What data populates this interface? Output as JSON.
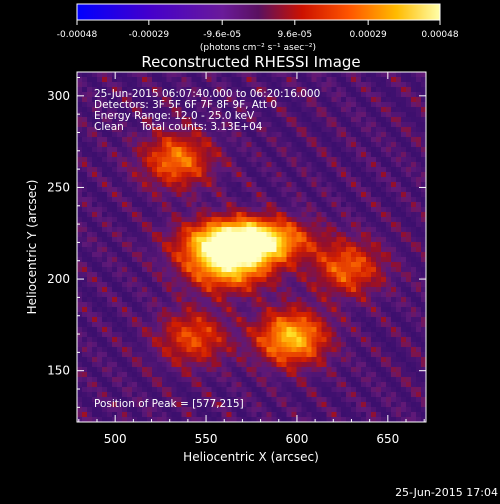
{
  "chart_data": {
    "type": "heatmap",
    "title": "Reconstructed RHESSI Image",
    "xlabel": "Heliocentric X (arcsec)",
    "ylabel": "Heliocentric Y (arcsec)",
    "xlim": [
      479,
      671
    ],
    "ylim": [
      122,
      313
    ],
    "x_ticks": [
      500,
      550,
      600,
      650
    ],
    "y_ticks": [
      150,
      200,
      250,
      300
    ],
    "grid": false,
    "colormap": "hot-metal (black-purple-red-orange-yellow-white)",
    "colorbar": {
      "position": "top",
      "range": [
        -0.00048,
        0.00048
      ],
      "tick_labels": [
        "-0.00048",
        "-0.00029",
        "-9.6e-05",
        "9.6e-05",
        "0.00029",
        "0.00048"
      ],
      "units_label": "(photons cm⁻² s⁻¹ asec⁻²)"
    },
    "annotations": [
      "25-Jun-2015 06:07:40.000 to 06:20:16.000",
      "Detectors: 3F 5F 6F 7F 8F 9F, Att 0",
      "Energy Range: 12.0 - 25.0 keV",
      "Clean     Total counts: 3.13E+04"
    ],
    "peak_label": "Position of Peak = [577,215]",
    "peak": {
      "x": 577,
      "y": 215
    },
    "sources": [
      {
        "x": 572,
        "y": 221,
        "intensity": 1.0
      },
      {
        "x": 562,
        "y": 209,
        "intensity": 0.7
      },
      {
        "x": 597,
        "y": 168,
        "intensity": 0.62
      },
      {
        "x": 534,
        "y": 265,
        "intensity": 0.45
      },
      {
        "x": 628,
        "y": 206,
        "intensity": 0.4
      },
      {
        "x": 543,
        "y": 168,
        "intensity": 0.35
      }
    ]
  },
  "footer": {
    "timestamp": "25-Jun-2015 17:04"
  }
}
